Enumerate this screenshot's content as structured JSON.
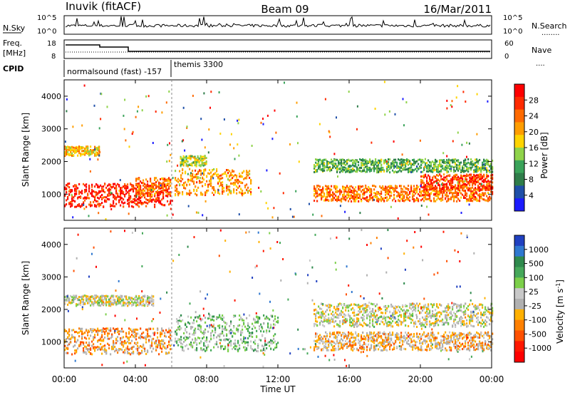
{
  "header": {
    "station": "Inuvik (fitACF)",
    "beam": "Beam 09",
    "date": "16/Mar/2011"
  },
  "noise_panel": {
    "left_label": "N.Sky",
    "left_ticks": [
      "10^5",
      "10^0"
    ],
    "right_ticks": [
      "10^5",
      "10^0"
    ],
    "right_label": "N.Search",
    "right_legend_marker": "........"
  },
  "freq_panel": {
    "left_label_1": "Freq.",
    "left_label_2": "[MHz]",
    "left_ticks": [
      "18",
      "8"
    ],
    "right_ticks": [
      "60",
      "0"
    ],
    "right_label": "Nave",
    "right_legend_marker": "...."
  },
  "cpid_panel": {
    "label": "CPID",
    "programs": [
      "normalsound (fast) -157",
      "themis 3300"
    ]
  },
  "colors": {
    "power": [
      "#1b1bff",
      "#1f4fa8",
      "#2f7d4a",
      "#3aa35a",
      "#8fd34a",
      "#ffd400",
      "#ff9d00",
      "#ff6a00",
      "#ff2a00",
      "#ff0000"
    ],
    "velocity": [
      "#2040c0",
      "#2f78d0",
      "#2f8a4d",
      "#46a85a",
      "#7ccf4a",
      "#c8c8c8",
      "#b0b0b0",
      "#ffb000",
      "#ff8000",
      "#ff5000",
      "#ff1800",
      "#ff0000"
    ]
  },
  "chart_data": [
    {
      "type": "heatmap",
      "title": "",
      "xlabel": "",
      "ylabel": "Slant Range [km]",
      "xlim": [
        "00:00",
        "24:00"
      ],
      "ylim": [
        200,
        4500
      ],
      "yticks": [
        "1000",
        "2000",
        "3000",
        "4000"
      ],
      "colorbar": {
        "label": "Power [dB]",
        "ticks": [
          "4",
          "8",
          "12",
          "16",
          "20",
          "24",
          "28"
        ],
        "range": [
          0,
          30
        ]
      },
      "bands": [
        {
          "start": 0,
          "end": 6,
          "center": 1000,
          "width": 450,
          "value": 27
        },
        {
          "start": 0,
          "end": 2,
          "center": 2350,
          "width": 180,
          "value": 18
        },
        {
          "start": 4,
          "end": 6,
          "center": 1250,
          "width": 350,
          "value": 22
        },
        {
          "start": 6.2,
          "end": 10.5,
          "center": 1400,
          "width": 500,
          "value": 20
        },
        {
          "start": 6.5,
          "end": 8,
          "center": 2050,
          "width": 200,
          "value": 14
        },
        {
          "start": 14,
          "end": 24,
          "center": 1050,
          "width": 300,
          "value": 22
        },
        {
          "start": 14,
          "end": 24,
          "center": 1900,
          "width": 250,
          "value": 11
        },
        {
          "start": 20,
          "end": 24,
          "center": 1400,
          "width": 300,
          "value": 25
        }
      ]
    },
    {
      "type": "heatmap",
      "title": "",
      "xlabel": "Time UT",
      "ylabel": "Slant Range [km]",
      "xlim": [
        "00:00",
        "24:00"
      ],
      "ylim": [
        200,
        4500
      ],
      "xticks": [
        "00:00",
        "04:00",
        "08:00",
        "12:00",
        "16:00",
        "20:00",
        "00:00"
      ],
      "yticks": [
        "1000",
        "2000",
        "3000",
        "4000"
      ],
      "colorbar": {
        "label": "Velocity [m s^-1]",
        "ticks": [
          "1000",
          "500",
          "100",
          "25",
          "-25",
          "-100",
          "-500",
          "-1000"
        ],
        "range": [
          -1000,
          1000
        ]
      },
      "bands": [
        {
          "start": 0,
          "end": 6,
          "center": 1050,
          "width": 500,
          "value": -300
        },
        {
          "start": 0,
          "end": 5,
          "center": 2300,
          "width": 200,
          "value": 0
        },
        {
          "start": 6.2,
          "end": 12,
          "center": 1300,
          "width": 700,
          "value": 200
        },
        {
          "start": 14,
          "end": 24,
          "center": 1050,
          "width": 350,
          "value": -200
        },
        {
          "start": 14,
          "end": 24,
          "center": 1850,
          "width": 450,
          "value": 0
        }
      ]
    }
  ]
}
